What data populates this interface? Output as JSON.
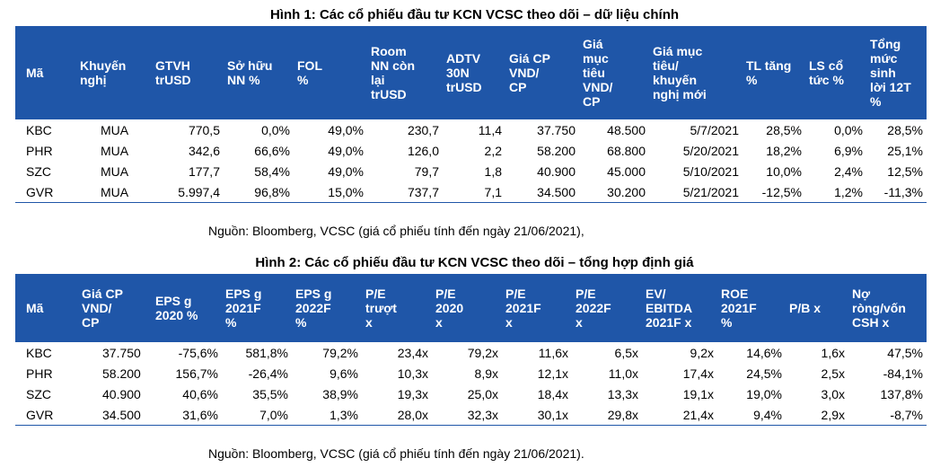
{
  "table1": {
    "caption": "Hình 1: Các cổ phiếu đầu tư KCN VCSC theo dõi – dữ liệu chính",
    "headers": [
      [
        "Mã"
      ],
      [
        "Khuyến",
        "nghị"
      ],
      [
        "GTVH",
        "trUSD"
      ],
      [
        "Sở hữu",
        "NN %"
      ],
      [
        "FOL",
        "%"
      ],
      [
        "Room",
        "NN còn",
        "lại",
        "trUSD"
      ],
      [
        "ADTV",
        "30N",
        "trUSD"
      ],
      [
        "Giá CP",
        "VND/",
        "CP"
      ],
      [
        "Giá",
        "mục",
        "tiêu",
        "VND/",
        "CP"
      ],
      [
        "Giá mục",
        "tiêu/",
        "khuyến",
        "nghị mới"
      ],
      [
        "TL tăng",
        "%"
      ],
      [
        "LS cổ",
        "tức %"
      ],
      [
        "Tổng",
        "mức",
        "sinh",
        "lời 12T",
        "%"
      ]
    ],
    "rows": [
      [
        "KBC",
        "MUA",
        "770,5",
        "0,0%",
        "49,0%",
        "230,7",
        "11,4",
        "37.750",
        "48.500",
        "5/7/2021",
        "28,5%",
        "0,0%",
        "28,5%"
      ],
      [
        "PHR",
        "MUA",
        "342,6",
        "66,6%",
        "49,0%",
        "126,0",
        "2,2",
        "58.200",
        "68.800",
        "5/20/2021",
        "18,2%",
        "6,9%",
        "25,1%"
      ],
      [
        "SZC",
        "MUA",
        "177,7",
        "58,4%",
        "49,0%",
        "79,7",
        "1,8",
        "40.900",
        "45.000",
        "5/10/2021",
        "10,0%",
        "2,4%",
        "12,5%"
      ],
      [
        "GVR",
        "MUA",
        "5.997,4",
        "96,8%",
        "15,0%",
        "737,7",
        "7,1",
        "34.500",
        "30.200",
        "5/21/2021",
        "-12,5%",
        "1,2%",
        "-11,3%"
      ]
    ],
    "source": "Nguồn: Bloomberg, VCSC (giá cổ phiếu tính đến ngày 21/06/2021),"
  },
  "table2": {
    "caption": "Hình 2: Các cổ phiếu đầu tư KCN VCSC theo dõi – tổng hợp định giá",
    "headers": [
      [
        "Mã"
      ],
      [
        "Giá CP",
        "VND/",
        "CP"
      ],
      [
        "EPS g",
        "2020 %"
      ],
      [
        "EPS g",
        "2021F",
        "%"
      ],
      [
        "EPS g",
        "2022F",
        "%"
      ],
      [
        "P/E",
        "trượt",
        "x"
      ],
      [
        "P/E",
        "2020",
        "x"
      ],
      [
        "P/E",
        "2021F",
        "x"
      ],
      [
        "P/E",
        "2022F",
        "x"
      ],
      [
        "EV/",
        "EBITDA",
        "2021F x"
      ],
      [
        "ROE",
        "2021F",
        "%"
      ],
      [
        "P/B x"
      ],
      [
        "Nợ",
        "ròng/vốn",
        "CSH x"
      ]
    ],
    "rows": [
      [
        "KBC",
        "37.750",
        "-75,6%",
        "581,8%",
        "79,2%",
        "23,4x",
        "79,2x",
        "11,6x",
        "6,5x",
        "9,2x",
        "14,6%",
        "1,6x",
        "47,5%"
      ],
      [
        "PHR",
        "58.200",
        "156,7%",
        "-26,4%",
        "9,6%",
        "10,3x",
        "8,9x",
        "12,1x",
        "11,0x",
        "17,4x",
        "24,5%",
        "2,5x",
        "-84,1%"
      ],
      [
        "SZC",
        "40.900",
        "40,6%",
        "35,5%",
        "38,9%",
        "19,3x",
        "25,0x",
        "18,4x",
        "13,3x",
        "19,1x",
        "19,0%",
        "3,0x",
        "137,8%"
      ],
      [
        "GVR",
        "34.500",
        "31,6%",
        "7,0%",
        "1,3%",
        "28,0x",
        "32,3x",
        "30,1x",
        "29,8x",
        "21,4x",
        "9,4%",
        "2,9x",
        "-8,7%"
      ]
    ],
    "source": "Nguồn: Bloomberg, VCSC (giá cổ phiếu tính đến ngày 21/06/2021)."
  }
}
